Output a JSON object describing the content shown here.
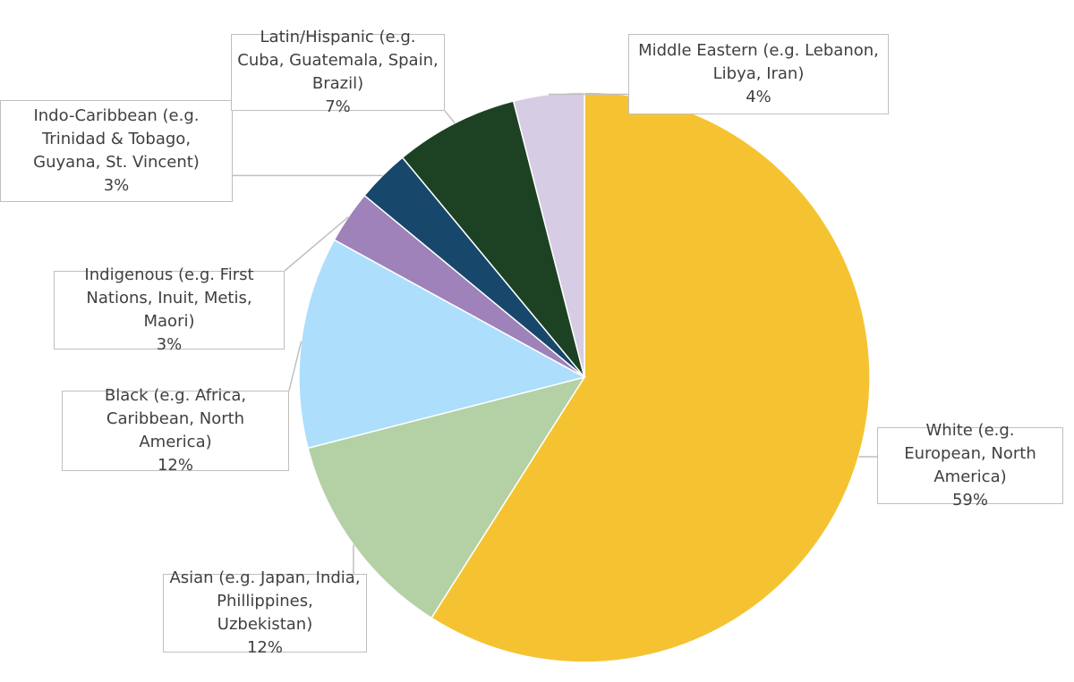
{
  "chart_data": {
    "type": "pie",
    "categories": [
      "White (e.g. European, North America)",
      "Asian (e.g. Japan, India, Phillippines, Uzbekistan)",
      "Black (e.g. Africa, Caribbean, North America)",
      "Indigenous (e.g. First Nations, Inuit, Metis, Maori)",
      "Indo-Caribbean (e.g. Trinidad & Tobago, Guyana, St. Vincent)",
      "Latin/Hispanic (e.g. Cuba, Guatemala, Spain, Brazil)",
      "Middle Eastern (e.g. Lebanon, Libya, Iran)"
    ],
    "values": [
      59,
      12,
      12,
      3,
      3,
      7,
      4
    ],
    "value_labels": [
      "59%",
      "12%",
      "12%",
      "3%",
      "3%",
      "7%",
      "4%"
    ],
    "colors": [
      "#f5c332",
      "#b3d1a5",
      "#addefc",
      "#9e82b9",
      "#17476b",
      "#1d4223",
      "#d6cce3"
    ]
  }
}
